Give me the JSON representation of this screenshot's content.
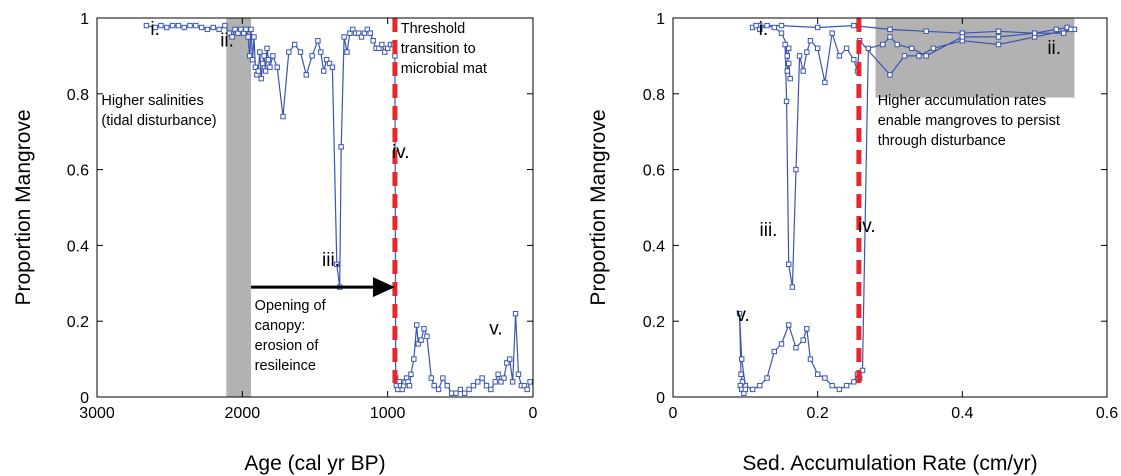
{
  "chart_data": [
    {
      "type": "line",
      "xlabel": "Age (cal yr BP)",
      "ylabel": "Proportion Mangrove",
      "xlim": [
        3000,
        0
      ],
      "x_reversed": true,
      "ylim": [
        0,
        1
      ],
      "xticks": [
        "3000",
        "2000",
        "1000",
        "0"
      ],
      "xtick_values": [
        3000,
        2000,
        1000,
        0
      ],
      "yticks": [
        "0",
        "0.2",
        "0.4",
        "0.6",
        "0.8",
        "1"
      ],
      "ytick_values": [
        0,
        0.2,
        0.4,
        0.6,
        0.8,
        1
      ],
      "series_color": "#3a55b4",
      "shade_color": "#b2b2b2",
      "threshold_color": "#e8262b",
      "shaded_band": [
        2110,
        1940
      ],
      "threshold_x": 950,
      "arrow": {
        "from": [
          1940,
          0.29
        ],
        "to": [
          950,
          0.29
        ]
      },
      "x": [
        2660,
        2600,
        2560,
        2520,
        2480,
        2440,
        2400,
        2360,
        2320,
        2280,
        2240,
        2200,
        2160,
        2120,
        2090,
        2070,
        2050,
        2030,
        2010,
        1990,
        1975,
        1960,
        1950,
        1940,
        1930,
        1920,
        1910,
        1900,
        1890,
        1880,
        1870,
        1860,
        1850,
        1840,
        1830,
        1820,
        1810,
        1790,
        1760,
        1720,
        1680,
        1640,
        1600,
        1560,
        1520,
        1480,
        1460,
        1440,
        1420,
        1400,
        1380,
        1350,
        1330,
        1320,
        1300,
        1280,
        1260,
        1240,
        1220,
        1200,
        1180,
        1160,
        1140,
        1120,
        1100,
        1080,
        1060,
        1040,
        1020,
        1000,
        980,
        960,
        950,
        945,
        940,
        930,
        920,
        910,
        900,
        890,
        880,
        870,
        860,
        850,
        840,
        820,
        800,
        790,
        770,
        750,
        730,
        700,
        680,
        650,
        620,
        590,
        560,
        530,
        500,
        470,
        440,
        410,
        380,
        350,
        320,
        290,
        260,
        240,
        220,
        200,
        180,
        160,
        140,
        120,
        100,
        80,
        60,
        40,
        20
      ],
      "y": [
        0.98,
        0.975,
        0.98,
        0.975,
        0.98,
        0.98,
        0.975,
        0.98,
        0.98,
        0.975,
        0.97,
        0.975,
        0.97,
        0.98,
        0.96,
        0.95,
        0.97,
        0.96,
        0.97,
        0.96,
        0.97,
        0.95,
        0.9,
        0.97,
        0.89,
        0.95,
        0.87,
        0.85,
        0.86,
        0.91,
        0.84,
        0.88,
        0.9,
        0.86,
        0.92,
        0.89,
        0.87,
        0.9,
        0.87,
        0.74,
        0.91,
        0.93,
        0.91,
        0.85,
        0.9,
        0.94,
        0.91,
        0.86,
        0.89,
        0.88,
        0.87,
        0.35,
        0.29,
        0.66,
        0.95,
        0.91,
        0.96,
        0.97,
        0.96,
        0.96,
        0.95,
        0.96,
        0.97,
        0.96,
        0.94,
        0.92,
        0.92,
        0.93,
        0.91,
        0.92,
        0.93,
        0.93,
        0.9,
        0.05,
        0.03,
        0.02,
        0.04,
        0.03,
        0.02,
        0.03,
        0.04,
        0.05,
        0.04,
        0.03,
        0.06,
        0.1,
        0.19,
        0.14,
        0.15,
        0.18,
        0.16,
        0.05,
        0.03,
        0.02,
        0.05,
        0.03,
        0.01,
        0.01,
        0.02,
        0.01,
        0.02,
        0.03,
        0.04,
        0.05,
        0.03,
        0.02,
        0.04,
        0.06,
        0.04,
        0.05,
        0.09,
        0.1,
        0.04,
        0.22,
        0.06,
        0.03,
        0.03,
        0.02,
        0.04
      ],
      "annotations": [
        {
          "text": "i.",
          "x": 2600,
          "y": 0.955,
          "kind": "roman"
        },
        {
          "text": "ii.",
          "x": 2105,
          "y": 0.925,
          "kind": "roman"
        },
        {
          "text": "iii.",
          "x": 1390,
          "y": 0.345,
          "kind": "roman"
        },
        {
          "text": "iv.",
          "x": 910,
          "y": 0.63,
          "kind": "roman"
        },
        {
          "text": "v.",
          "x": 255,
          "y": 0.165,
          "kind": "roman"
        },
        {
          "lines": [
            "Threshold",
            "transition to",
            "microbial mat"
          ],
          "x": 910,
          "y": 0.96,
          "kind": "note"
        },
        {
          "lines": [
            "Higher salinities",
            "(tidal disturbance)"
          ],
          "x": 2970,
          "y": 0.77,
          "kind": "note"
        },
        {
          "lines": [
            "Opening of",
            "canopy:",
            "erosion of",
            "resileince"
          ],
          "x": 1915,
          "y": 0.23,
          "kind": "note"
        }
      ]
    },
    {
      "type": "line",
      "xlabel": "Sed. Accumulation Rate (cm/yr)",
      "ylabel": "Proportion Mangrove",
      "xlim": [
        0,
        0.6
      ],
      "ylim": [
        0,
        1
      ],
      "xticks": [
        "0",
        "0.2",
        "0.4",
        "0.6"
      ],
      "xtick_values": [
        0,
        0.2,
        0.4,
        0.6
      ],
      "yticks": [
        "0",
        "0.2",
        "0.4",
        "0.6",
        "0.8",
        "1"
      ],
      "ytick_values": [
        0,
        0.2,
        0.4,
        0.6,
        0.8,
        1
      ],
      "series_color": "#3a55b4",
      "shade_color": "#b2b2b2",
      "threshold_color": "#e8262b",
      "shaded_rect": {
        "x": [
          0.28,
          0.555
        ],
        "y": [
          0.79,
          1.0
        ]
      },
      "threshold_x": 0.257,
      "x": [
        0.555,
        0.545,
        0.53,
        0.5,
        0.45,
        0.4,
        0.35,
        0.3,
        0.25,
        0.2,
        0.15,
        0.12,
        0.11,
        0.115,
        0.12,
        0.13,
        0.14,
        0.15,
        0.16,
        0.158,
        0.16,
        0.162,
        0.158,
        0.155,
        0.157,
        0.16,
        0.165,
        0.17,
        0.175,
        0.18,
        0.185,
        0.19,
        0.2,
        0.21,
        0.22,
        0.23,
        0.24,
        0.25,
        0.255,
        0.258,
        0.3,
        0.32,
        0.34,
        0.36,
        0.4,
        0.45,
        0.5,
        0.55,
        0.54,
        0.5,
        0.45,
        0.4,
        0.35,
        0.33,
        0.31,
        0.3,
        0.29,
        0.27,
        0.262,
        0.258,
        0.255,
        0.25,
        0.24,
        0.23,
        0.22,
        0.21,
        0.2,
        0.19,
        0.185,
        0.18,
        0.17,
        0.16,
        0.15,
        0.14,
        0.13,
        0.12,
        0.11,
        0.1,
        0.095,
        0.092,
        0.094,
        0.096,
        0.093,
        0.095,
        0.098,
        0.1
      ],
      "y": [
        0.97,
        0.975,
        0.97,
        0.96,
        0.965,
        0.96,
        0.965,
        0.97,
        0.98,
        0.975,
        0.98,
        0.98,
        0.975,
        0.98,
        0.97,
        0.98,
        0.975,
        0.96,
        0.92,
        0.86,
        0.88,
        0.84,
        0.9,
        0.93,
        0.78,
        0.35,
        0.29,
        0.6,
        0.9,
        0.86,
        0.91,
        0.94,
        0.92,
        0.83,
        0.96,
        0.9,
        0.92,
        0.89,
        0.86,
        0.94,
        0.85,
        0.9,
        0.9,
        0.92,
        0.94,
        0.93,
        0.95,
        0.97,
        0.96,
        0.96,
        0.95,
        0.95,
        0.9,
        0.92,
        0.93,
        0.95,
        0.93,
        0.92,
        0.07,
        0.05,
        0.06,
        0.04,
        0.03,
        0.02,
        0.03,
        0.05,
        0.06,
        0.1,
        0.18,
        0.15,
        0.13,
        0.19,
        0.14,
        0.12,
        0.05,
        0.03,
        0.02,
        0.03,
        0.1,
        0.22,
        0.06,
        0.04,
        0.03,
        0.02,
        0.01,
        0.02
      ],
      "annotations": [
        {
          "text": "i.",
          "x": 0.125,
          "y": 0.955,
          "kind": "roman"
        },
        {
          "text": "ii.",
          "x": 0.527,
          "y": 0.905,
          "kind": "roman"
        },
        {
          "text": "iii.",
          "x": 0.132,
          "y": 0.425,
          "kind": "roman"
        },
        {
          "text": "iv.",
          "x": 0.268,
          "y": 0.435,
          "kind": "roman"
        },
        {
          "text": "v.",
          "x": 0.097,
          "y": 0.2,
          "kind": "roman"
        },
        {
          "lines": [
            "Higher accumulation rates",
            "enable mangroves to persist",
            "through disturbance"
          ],
          "x": 0.283,
          "y": 0.77,
          "kind": "note"
        }
      ]
    }
  ]
}
